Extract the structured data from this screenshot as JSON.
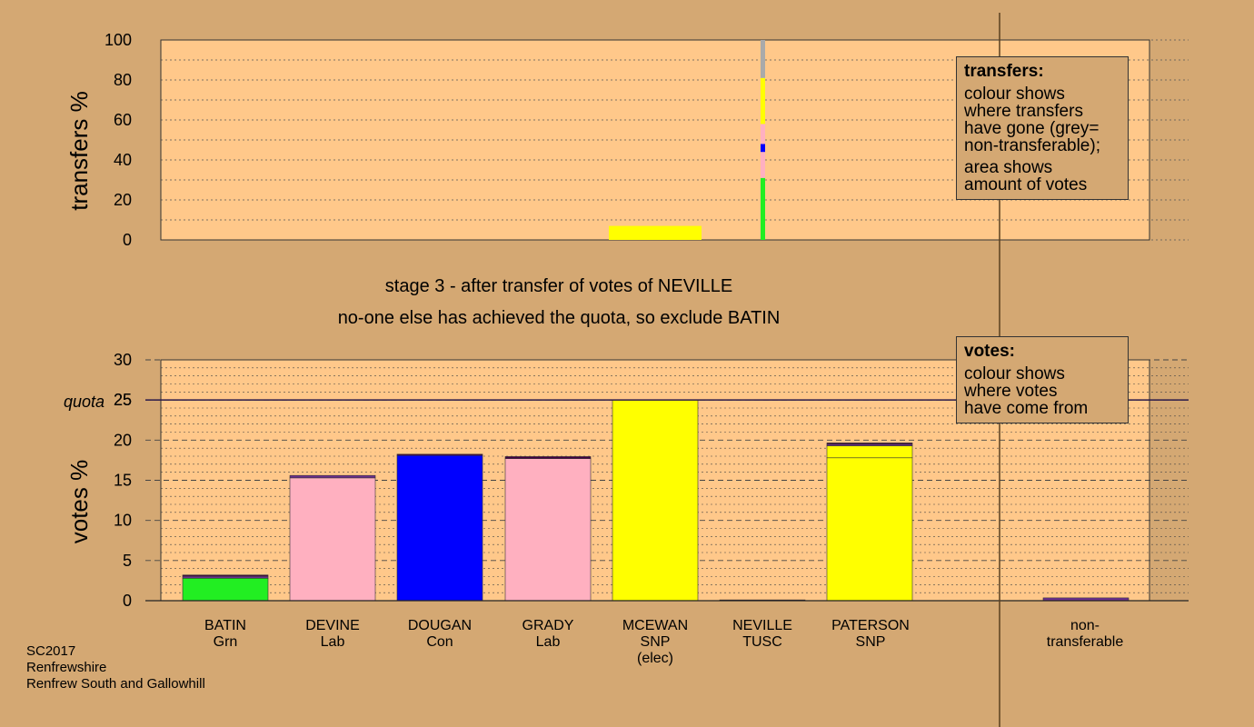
{
  "chart_data": [
    {
      "type": "bar",
      "ylabel": "transfers %",
      "ylim": [
        0,
        100
      ],
      "yticks": [
        0,
        20,
        40,
        60,
        80,
        100
      ],
      "grid": true,
      "transfers_from": "NEVILLE",
      "column": [
        {
          "party_color": "#22ee22",
          "from": 0,
          "to": 31
        },
        {
          "party_color": "#ffb0c0",
          "from": 31,
          "to": 44
        },
        {
          "party_color": "#0000ff",
          "from": 44,
          "to": 48
        },
        {
          "party_color": "#ffb0c0",
          "from": 48,
          "to": 58
        },
        {
          "party_color": "#ffff00",
          "from": 58,
          "to": 81
        },
        {
          "party_color": "#aaaaaa",
          "from": 81,
          "to": 100
        }
      ],
      "block": {
        "candidate_index": 4,
        "color": "#ffff00",
        "height": 7
      }
    },
    {
      "type": "bar",
      "ylabel": "votes %",
      "ylim": [
        0,
        30
      ],
      "yticks": [
        0,
        5,
        10,
        15,
        20,
        25,
        30
      ],
      "quota": 25,
      "grid": true,
      "categories": [
        "BATIN Grn",
        "DEVINE Lab",
        "DOUGAN Con",
        "GRADY Lab",
        "MCEWAN SNP (elec)",
        "NEVILLE TUSC",
        "PATERSON SNP",
        "non-transferable"
      ],
      "stacks": [
        [
          {
            "value": 2.8,
            "color": "#22ee22"
          },
          {
            "value": 0.25,
            "color": "#6d2f8f"
          },
          {
            "value": 0.15,
            "color": "#440044"
          }
        ],
        [
          {
            "value": 15.3,
            "color": "#ffb0c0"
          },
          {
            "value": 0.3,
            "color": "#6d2f8f"
          }
        ],
        [
          {
            "value": 18.1,
            "color": "#0000ff"
          },
          {
            "value": 0.15,
            "color": "#440044"
          }
        ],
        [
          {
            "value": 17.7,
            "color": "#ffb0c0"
          },
          {
            "value": 0.25,
            "color": "#440044"
          }
        ],
        [
          {
            "value": 25.0,
            "color": "#ffff00"
          }
        ],
        [
          {
            "value": 0.1,
            "color": "#440044"
          }
        ],
        [
          {
            "value": 17.8,
            "color": "#ffff00"
          },
          {
            "value": 1.5,
            "color": "#ffff00"
          },
          {
            "value": 0.2,
            "color": "#6d2f8f"
          },
          {
            "value": 0.15,
            "color": "#440044"
          }
        ],
        [
          {
            "value": 0.35,
            "color": "#6d2f8f"
          }
        ]
      ]
    }
  ],
  "labels": {
    "transfers_axis": "transfers %",
    "votes_axis": "votes %",
    "quota_label": "quota",
    "stage_line": "stage 3 - after transfer of votes of NEVILLE",
    "action_line": "no-one else has achieved the quota, so exclude BATIN"
  },
  "legend_transfers": {
    "title": "transfers:",
    "para1": [
      "colour shows",
      "where transfers",
      "have gone (grey=",
      "non-transferable);"
    ],
    "para2": [
      "area shows",
      "amount of votes"
    ]
  },
  "legend_votes": {
    "title": "votes:",
    "para1": [
      "colour shows",
      "where votes",
      "have come from"
    ]
  },
  "candidates": [
    {
      "name": "BATIN",
      "party": "Grn",
      "note": ""
    },
    {
      "name": "DEVINE",
      "party": "Lab",
      "note": ""
    },
    {
      "name": "DOUGAN",
      "party": "Con",
      "note": ""
    },
    {
      "name": "GRADY",
      "party": "Lab",
      "note": ""
    },
    {
      "name": "MCEWAN",
      "party": "SNP",
      "note": "(elec)"
    },
    {
      "name": "NEVILLE",
      "party": "TUSC",
      "note": ""
    },
    {
      "name": "PATERSON",
      "party": "SNP",
      "note": ""
    }
  ],
  "nontransferable": {
    "line1": "non-",
    "line2": "transferable"
  },
  "footer": {
    "election": "SC2017",
    "council": "Renfrewshire",
    "ward": "Renfrew South and Gallowhill"
  },
  "colors": {
    "background": "#d4a873",
    "plot_bg": "#ffc88a",
    "quota_line": "#2a1a4a"
  }
}
